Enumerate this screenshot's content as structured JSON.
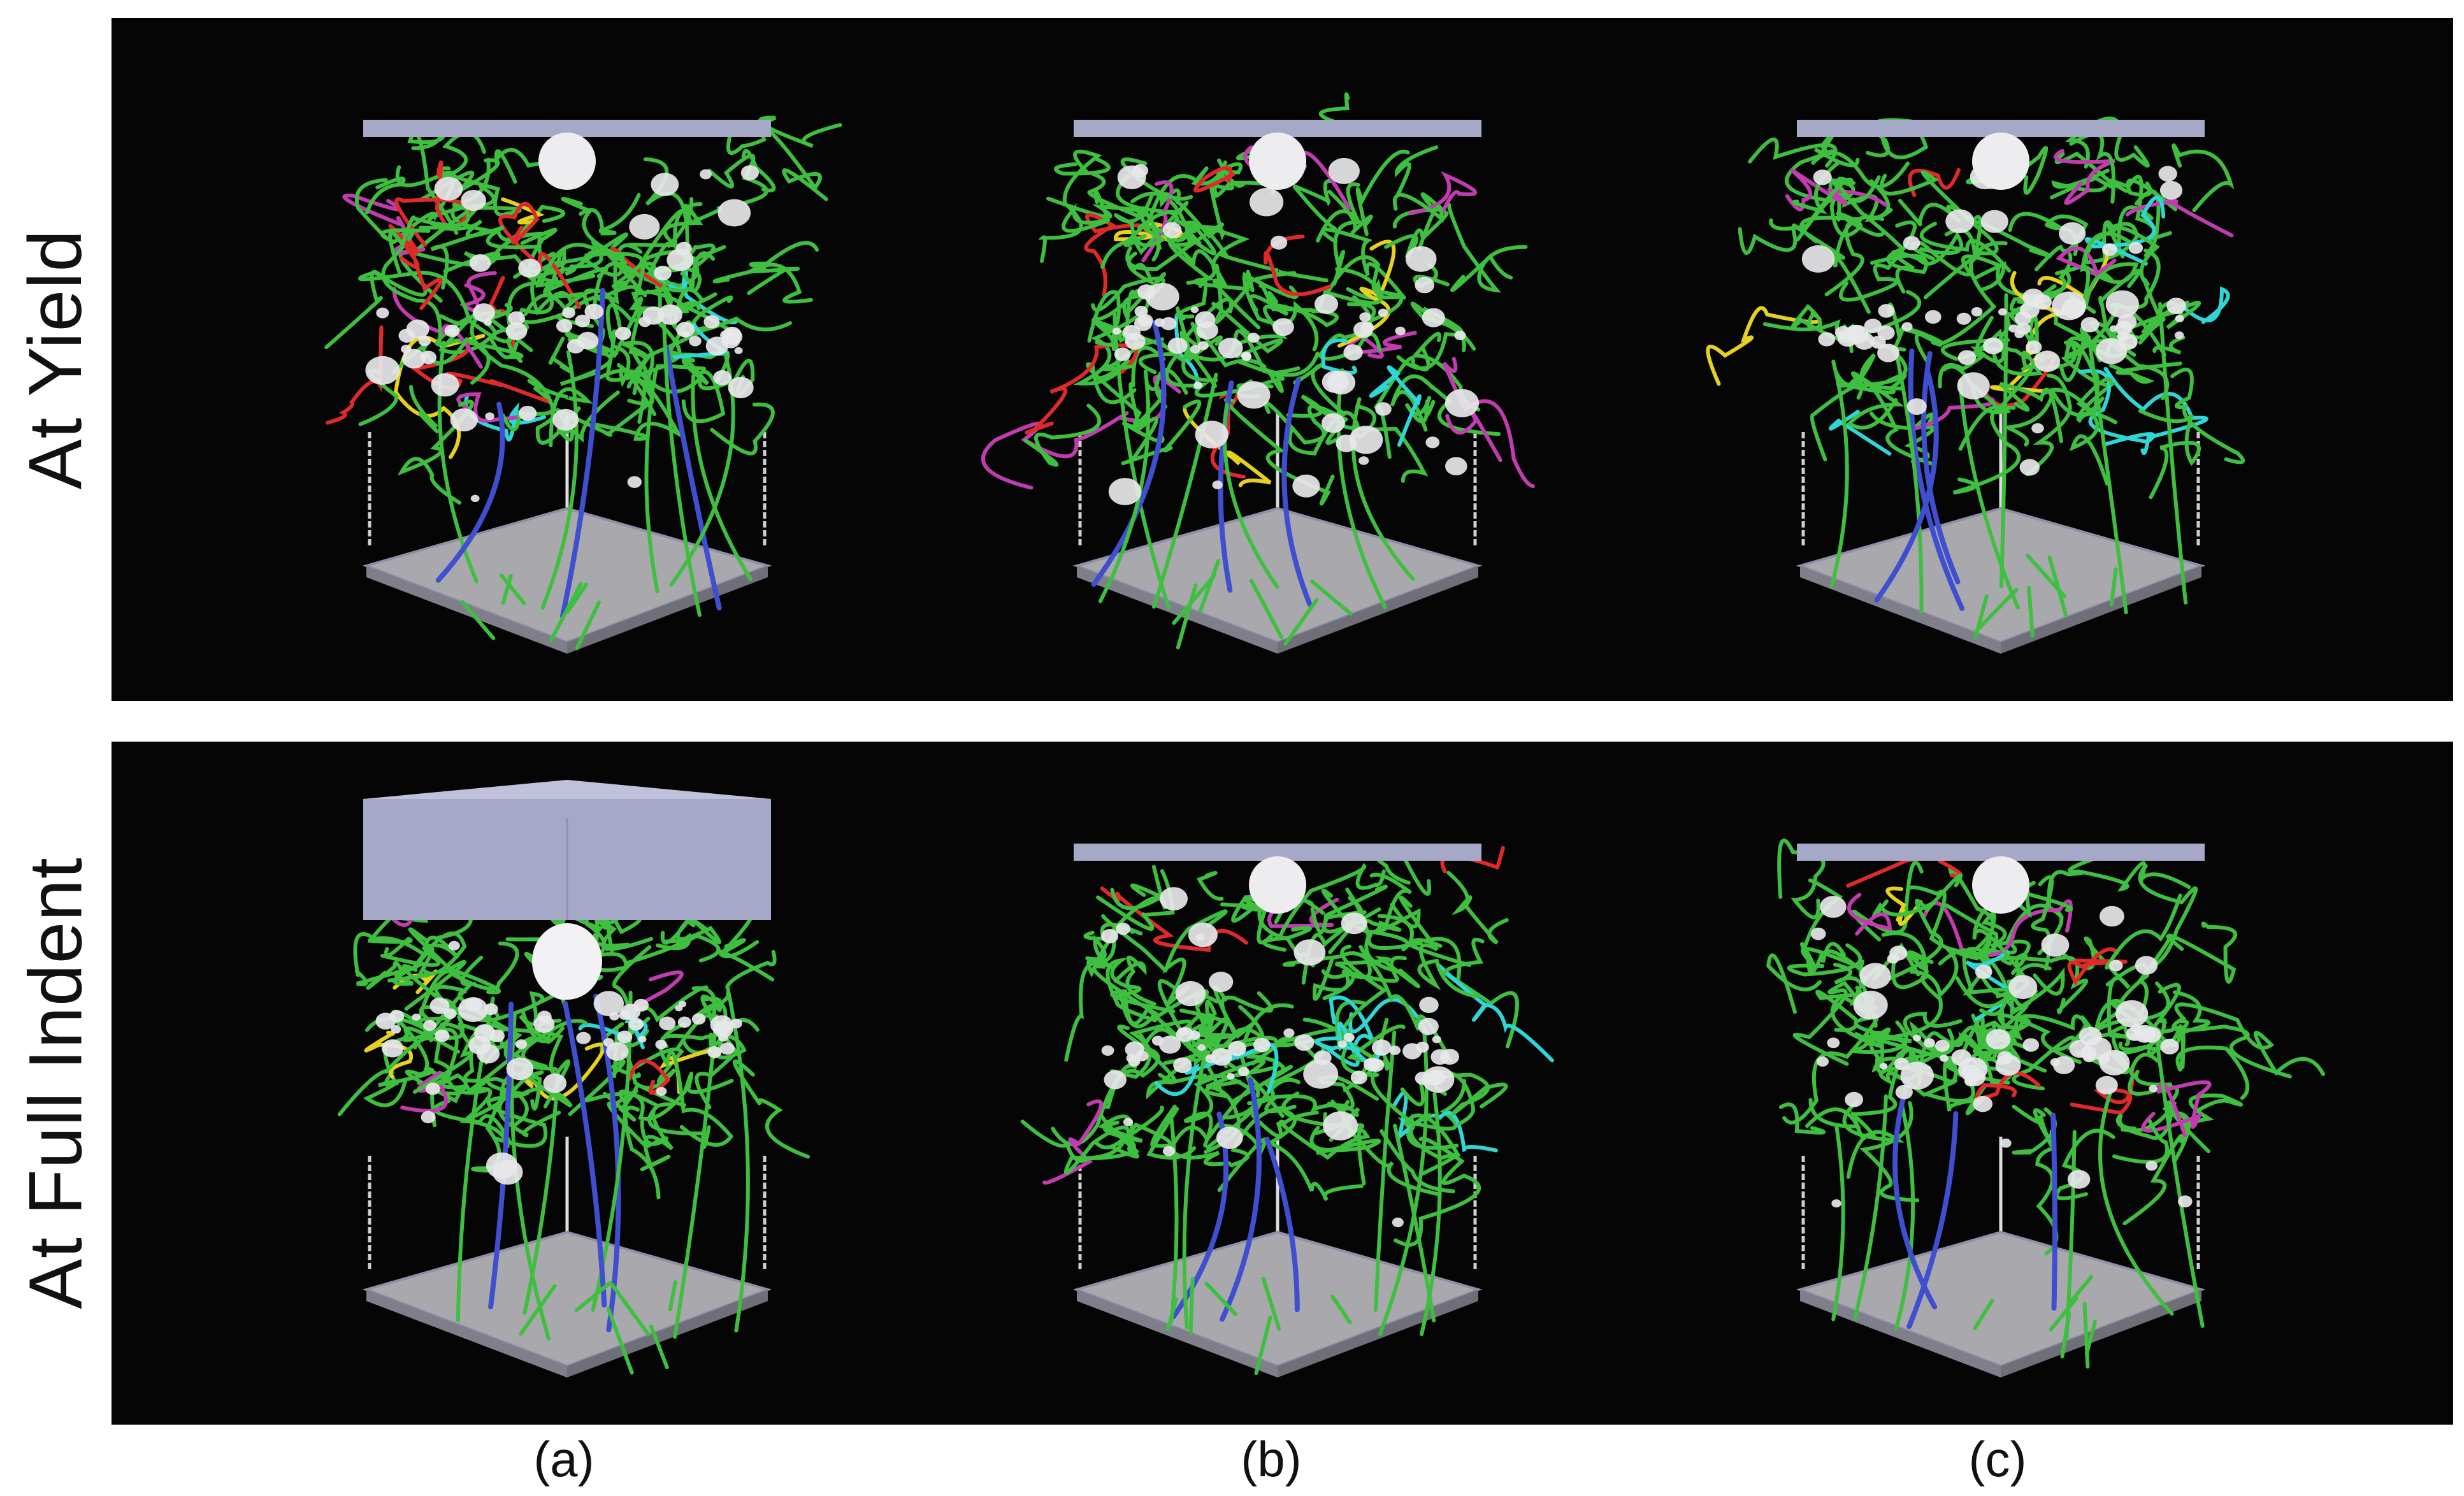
{
  "rows": [
    {
      "label": "At Yield",
      "indenter": "thin"
    },
    {
      "label": "At Full Indent",
      "indenter": "thick"
    }
  ],
  "columns": [
    {
      "label": "(a)"
    },
    {
      "label": "(b)"
    },
    {
      "label": "(c)"
    }
  ],
  "colors": {
    "background": "#050505",
    "indenter": "#a6a8c8",
    "substrate": "#a9a9ad",
    "dislocation_main": "#3fbf3f",
    "dislocation_blue": "#3f4fd0",
    "dislocation_magenta": "#c23cb0",
    "dislocation_yellow": "#e6d21e",
    "dislocation_red": "#e02a2a",
    "dislocation_cyan": "#2ed6d6",
    "void_cluster": "#e8e8ea"
  }
}
